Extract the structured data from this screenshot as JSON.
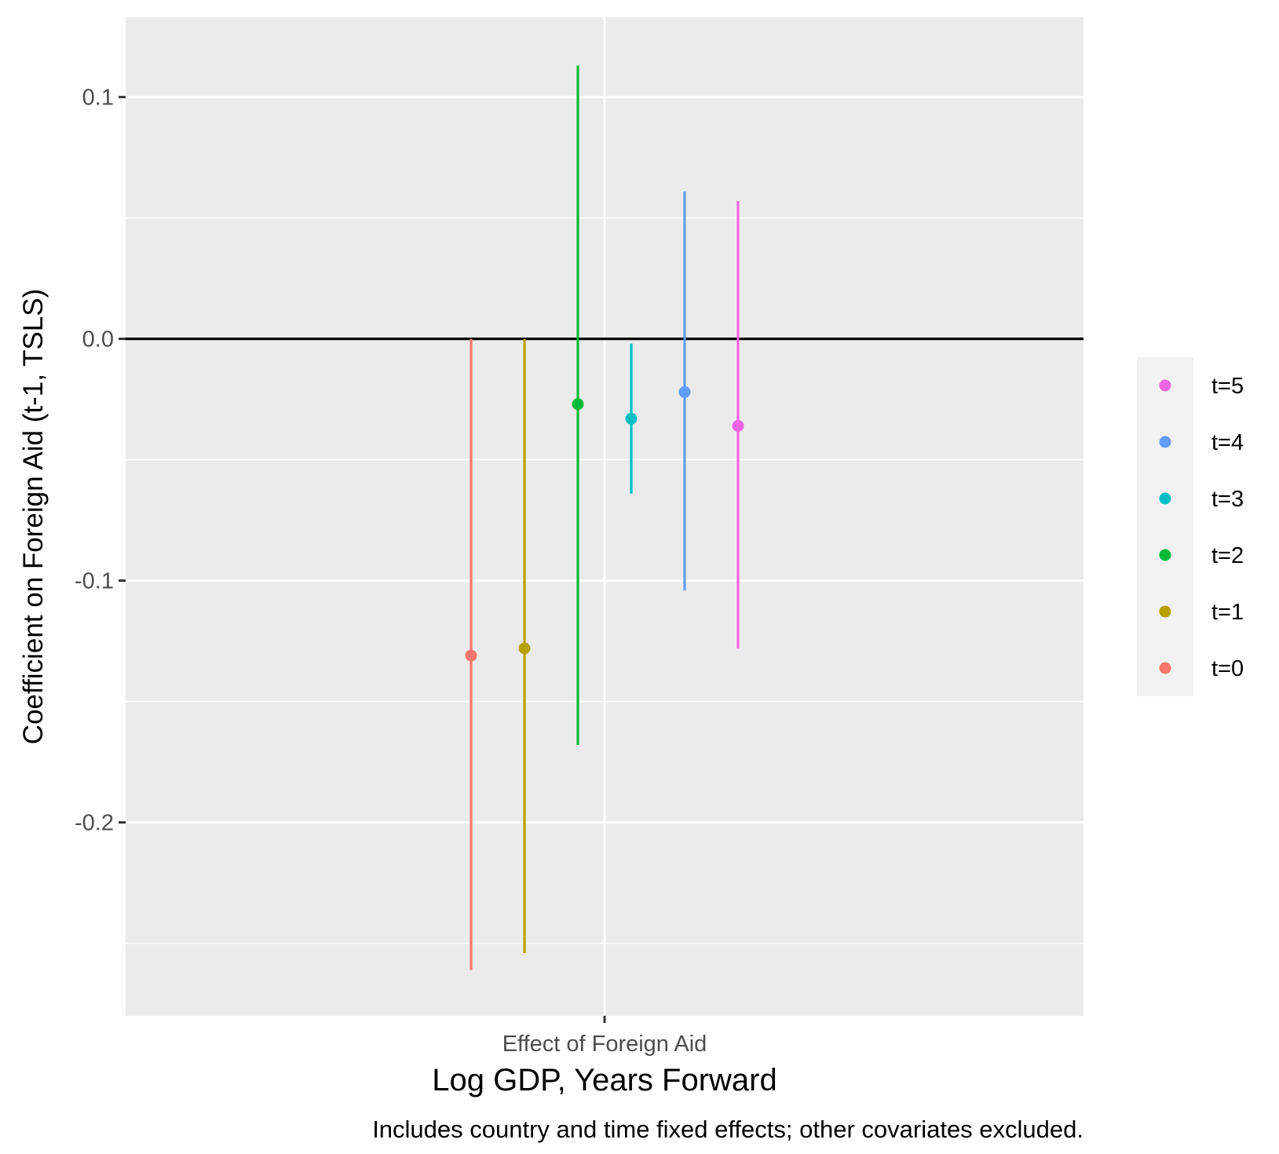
{
  "chart_data": {
    "type": "scatter",
    "xlabel": "Log GDP, Years Forward",
    "ylabel": "Coefficient on Foreign Aid (t-1, TSLS)",
    "caption": "Includes country and time fixed effects; other covariates excluded.",
    "categories": [
      "Effect of Foreign Aid"
    ],
    "ylim": [
      -0.28,
      0.133
    ],
    "y_ticks": [
      0.1,
      0.0,
      -0.1,
      -0.2
    ],
    "y_tick_labels": [
      "0.1",
      "0.0",
      "-0.1",
      "-0.2"
    ],
    "reference_line": 0.0,
    "grid": true,
    "legend_position": "right",
    "series": [
      {
        "name": "t=0",
        "color": "#F8766D",
        "estimate": -0.131,
        "lower": -0.261,
        "upper": 0.0
      },
      {
        "name": "t=1",
        "color": "#B79F00",
        "estimate": -0.128,
        "lower": -0.254,
        "upper": 0.0
      },
      {
        "name": "t=2",
        "color": "#00BA38",
        "estimate": -0.027,
        "lower": -0.168,
        "upper": 0.113
      },
      {
        "name": "t=3",
        "color": "#00BFC4",
        "estimate": -0.033,
        "lower": -0.064,
        "upper": -0.002
      },
      {
        "name": "t=4",
        "color": "#619CFF",
        "estimate": -0.022,
        "lower": -0.104,
        "upper": 0.061
      },
      {
        "name": "t=5",
        "color": "#F564E3",
        "estimate": -0.036,
        "lower": -0.128,
        "upper": 0.057
      }
    ]
  }
}
